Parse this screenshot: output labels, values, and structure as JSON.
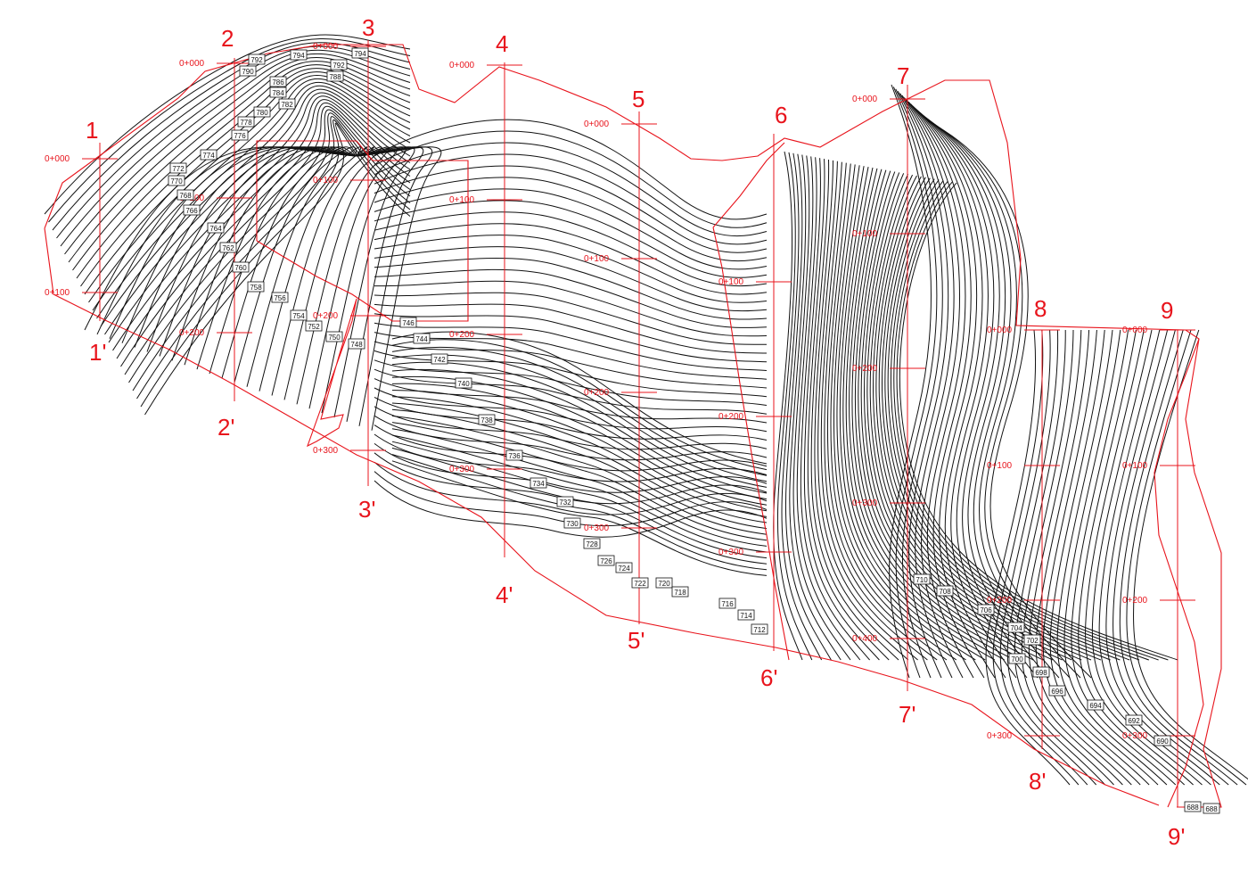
{
  "colors": {
    "contour": "#111111",
    "boundary": "#e8141c",
    "background": "#ffffff"
  },
  "sections": [
    {
      "start": "1",
      "end": "1'",
      "chainage": [
        "0+000",
        "0+100"
      ]
    },
    {
      "start": "2",
      "end": "2'",
      "chainage": [
        "0+000",
        "0+100",
        "0+200"
      ]
    },
    {
      "start": "3",
      "end": "3'",
      "chainage": [
        "0+000",
        "0+100",
        "0+200",
        "0+300"
      ]
    },
    {
      "start": "4",
      "end": "4'",
      "chainage": [
        "0+000",
        "0+100",
        "0+200",
        "0+300"
      ]
    },
    {
      "start": "5",
      "end": "5'",
      "chainage": [
        "0+000",
        "0+100",
        "0+200",
        "0+300"
      ]
    },
    {
      "start": "6",
      "end": "6'",
      "chainage": [
        "0+100",
        "0+200",
        "0+300"
      ]
    },
    {
      "start": "7",
      "end": "7'",
      "chainage": [
        "0+000",
        "0+100",
        "0+200",
        "0+300",
        "0+400"
      ]
    },
    {
      "start": "8",
      "end": "8'",
      "chainage": [
        "0+000",
        "0+100",
        "0+200",
        "0+300"
      ]
    },
    {
      "start": "9",
      "end": "9'",
      "chainage": [
        "0+000",
        "0+100",
        "0+200",
        "0+300"
      ]
    }
  ],
  "elevation_labels": [
    "794",
    "794",
    "792",
    "792",
    "790",
    "788",
    "786",
    "784",
    "782",
    "780",
    "778",
    "776",
    "774",
    "772",
    "770",
    "768",
    "766",
    "764",
    "762",
    "760",
    "758",
    "756",
    "754",
    "752",
    "750",
    "748",
    "746",
    "744",
    "742",
    "740",
    "738",
    "736",
    "734",
    "732",
    "730",
    "728",
    "726",
    "724",
    "722",
    "720",
    "718",
    "716",
    "714",
    "712",
    "710",
    "708",
    "706",
    "704",
    "702",
    "700",
    "698",
    "696",
    "694",
    "692",
    "690",
    "688",
    "688"
  ]
}
